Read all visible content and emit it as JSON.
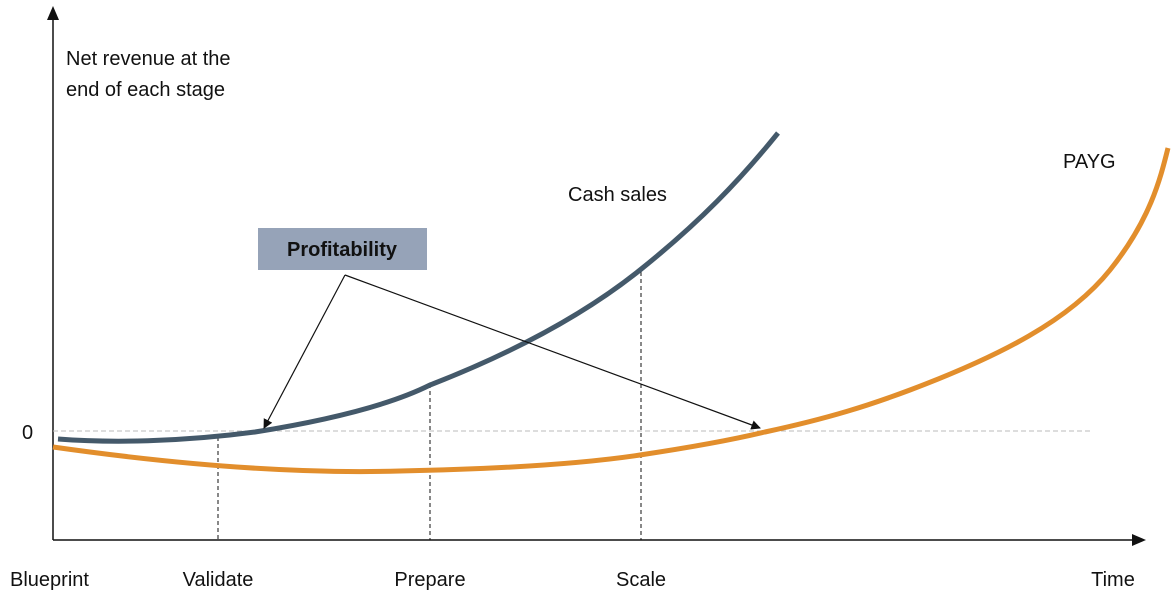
{
  "axis": {
    "y_label_lines": [
      "Net revenue at the",
      "end of each stage"
    ],
    "zero_label": "0",
    "x_label": "Time"
  },
  "curves": {
    "cash": "Cash sales",
    "payg": "PAYG"
  },
  "callout": "Profitability",
  "stages": [
    "Blueprint",
    "Validate",
    "Prepare",
    "Scale"
  ]
}
